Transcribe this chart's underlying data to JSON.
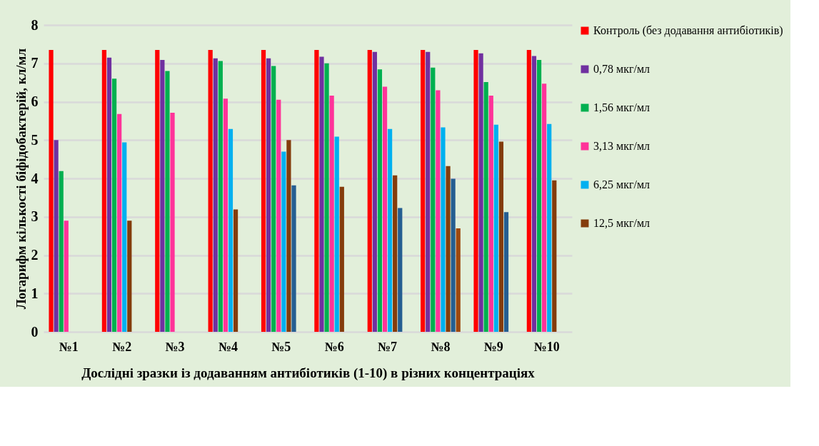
{
  "chart_data": {
    "type": "bar",
    "xlabel": "Дослідні зразки із додаванням  антибіотиків  (1-10) в різних концентраціях",
    "ylabel": "Логарифм кількості біфідобактерій, кл/мл",
    "categories": [
      "№1",
      "№2",
      "№3",
      "№4",
      "№5",
      "№6",
      "№7",
      "№8",
      "№9",
      "№10"
    ],
    "series": [
      {
        "name": "Контроль (без додавання антибіотиків)",
        "color": "#ff0000",
        "values": [
          7.35,
          7.35,
          7.35,
          7.35,
          7.35,
          7.35,
          7.35,
          7.35,
          7.35,
          7.35
        ]
      },
      {
        "name": "0,78 мкг/мл",
        "color": "#7030a0",
        "values": [
          5.0,
          7.15,
          7.09,
          7.13,
          7.13,
          7.17,
          7.3,
          7.3,
          7.26,
          7.19
        ]
      },
      {
        "name": "1,56 мкг/мл",
        "color": "#00b050",
        "values": [
          4.19,
          6.6,
          6.8,
          7.06,
          6.93,
          7.0,
          6.84,
          6.89,
          6.51,
          7.09
        ]
      },
      {
        "name": "3,13 мкг/мл",
        "color": "#ff3399",
        "values": [
          2.9,
          5.68,
          5.71,
          6.08,
          6.05,
          6.16,
          6.39,
          6.3,
          6.16,
          6.47
        ]
      },
      {
        "name": "6,25 мкг/мл",
        "color": "#00b0f0",
        "values": [
          null,
          4.94,
          null,
          5.29,
          4.7,
          5.09,
          5.29,
          5.33,
          5.4,
          5.42
        ]
      },
      {
        "name": "12,5 мкг/мл",
        "color": "#843c0c",
        "values": [
          null,
          2.9,
          null,
          3.19,
          5.0,
          3.78,
          4.08,
          4.32,
          4.96,
          3.95
        ]
      },
      {
        "color": "#255e91",
        "values": [
          null,
          null,
          null,
          null,
          3.82,
          null,
          3.23,
          3.99,
          3.12,
          null
        ]
      },
      {
        "color": "#9e480e",
        "values": [
          null,
          null,
          null,
          null,
          null,
          null,
          null,
          2.7,
          null,
          null
        ]
      }
    ],
    "ylim": [
      0,
      8
    ],
    "yticks": [
      0,
      1,
      2,
      3,
      4,
      5,
      6,
      7,
      8
    ],
    "grid": "y",
    "legend": "right"
  }
}
